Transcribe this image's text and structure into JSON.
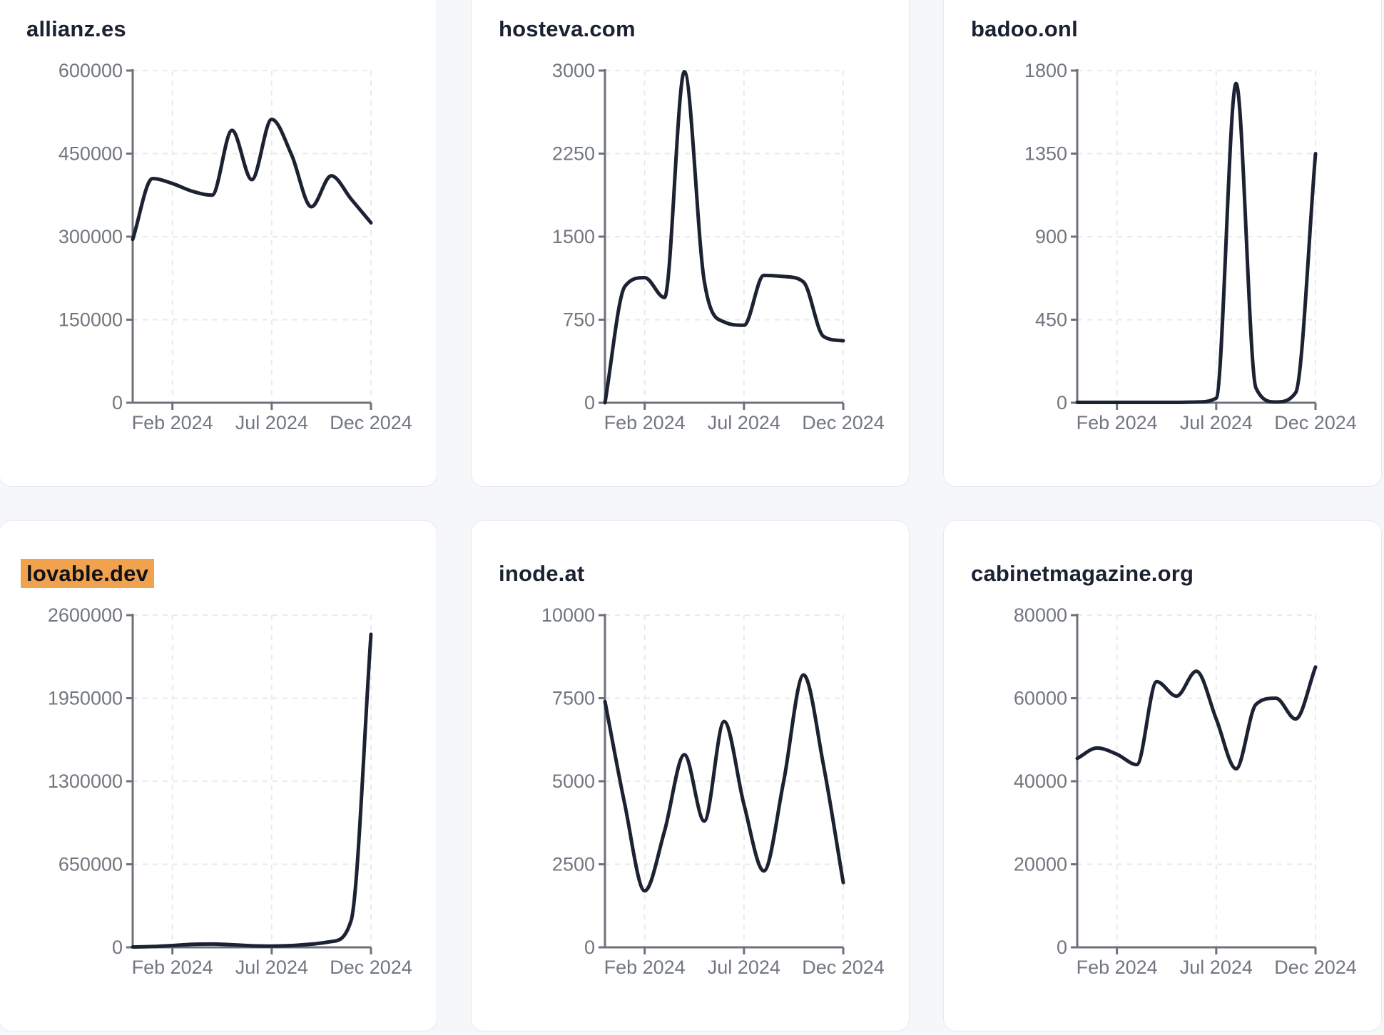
{
  "page": {
    "background": "#f6f7f9"
  },
  "colors": {
    "line": "#1d2233",
    "axis": "#6d727a",
    "tick_label": "#72777f",
    "grid": "#e9eaee",
    "title": "#1b2132",
    "highlight": "#f1a24e",
    "card_bg": "#ffffff",
    "card_border": "#e7e9f0"
  },
  "chart_data": [
    {
      "type": "line",
      "title": "allianz.es",
      "highlighted": false,
      "ylim": [
        0,
        600000
      ],
      "y_ticks": [
        0,
        150000,
        300000,
        450000,
        600000
      ],
      "x_tick_labels": [
        "Feb 2024",
        "Jul 2024",
        "Dec 2024"
      ],
      "x_tick_positions": [
        2,
        7,
        12
      ],
      "x_span": 12,
      "values": [
        295000,
        405000,
        396000,
        382000,
        375000,
        492000,
        403000,
        512000,
        448000,
        354000,
        410000,
        368000,
        325000
      ],
      "grid": true,
      "legend": "none"
    },
    {
      "type": "line",
      "title": "hosteva.com",
      "highlighted": false,
      "ylim": [
        0,
        3000
      ],
      "y_ticks": [
        0,
        750,
        1500,
        2250,
        3000
      ],
      "x_tick_labels": [
        "Feb 2024",
        "Jul 2024",
        "Dec 2024"
      ],
      "x_tick_positions": [
        2,
        7,
        12
      ],
      "x_span": 12,
      "values": [
        0,
        1050,
        1130,
        950,
        2990,
        1100,
        730,
        700,
        1150,
        1140,
        1090,
        600,
        560
      ],
      "grid": true,
      "legend": "none"
    },
    {
      "type": "line",
      "title": "badoo.onl",
      "highlighted": false,
      "ylim": [
        0,
        1800
      ],
      "y_ticks": [
        0,
        450,
        900,
        1350,
        1800
      ],
      "x_tick_labels": [
        "Feb 2024",
        "Jul 2024",
        "Dec 2024"
      ],
      "x_tick_positions": [
        2,
        7,
        12
      ],
      "x_span": 12,
      "values": [
        2,
        2,
        2,
        2,
        2,
        2,
        4,
        25,
        1730,
        80,
        4,
        55,
        1350
      ],
      "grid": true,
      "legend": "none"
    },
    {
      "type": "line",
      "title": "lovable.dev",
      "highlighted": true,
      "ylim": [
        0,
        2600000
      ],
      "y_ticks": [
        0,
        650000,
        1300000,
        1950000,
        2600000
      ],
      "x_tick_labels": [
        "Feb 2024",
        "Jul 2024",
        "Dec 2024"
      ],
      "x_tick_positions": [
        2,
        7,
        12
      ],
      "x_span": 12,
      "values": [
        3000,
        6000,
        14000,
        24000,
        26000,
        20000,
        12000,
        10000,
        14000,
        25000,
        45000,
        210000,
        2450000
      ],
      "grid": true,
      "legend": "none"
    },
    {
      "type": "line",
      "title": "inode.at",
      "highlighted": false,
      "ylim": [
        0,
        10000
      ],
      "y_ticks": [
        0,
        2500,
        5000,
        7500,
        10000
      ],
      "x_tick_labels": [
        "Feb 2024",
        "Jul 2024",
        "Dec 2024"
      ],
      "x_tick_positions": [
        2,
        7,
        12
      ],
      "x_span": 12,
      "values": [
        7400,
        4300,
        1700,
        3500,
        5800,
        3800,
        6800,
        4300,
        2300,
        5000,
        8200,
        5500,
        1950
      ],
      "grid": true,
      "legend": "none"
    },
    {
      "type": "line",
      "title": "cabinetmagazine.org",
      "highlighted": false,
      "ylim": [
        0,
        80000
      ],
      "y_ticks": [
        0,
        20000,
        40000,
        60000,
        80000
      ],
      "x_tick_labels": [
        "Feb 2024",
        "Jul 2024",
        "Dec 2024"
      ],
      "x_tick_positions": [
        2,
        7,
        12
      ],
      "x_span": 12,
      "values": [
        45500,
        48000,
        46500,
        44000,
        64000,
        60500,
        66500,
        55000,
        43000,
        58500,
        60000,
        55000,
        67500
      ],
      "grid": true,
      "legend": "none"
    }
  ]
}
